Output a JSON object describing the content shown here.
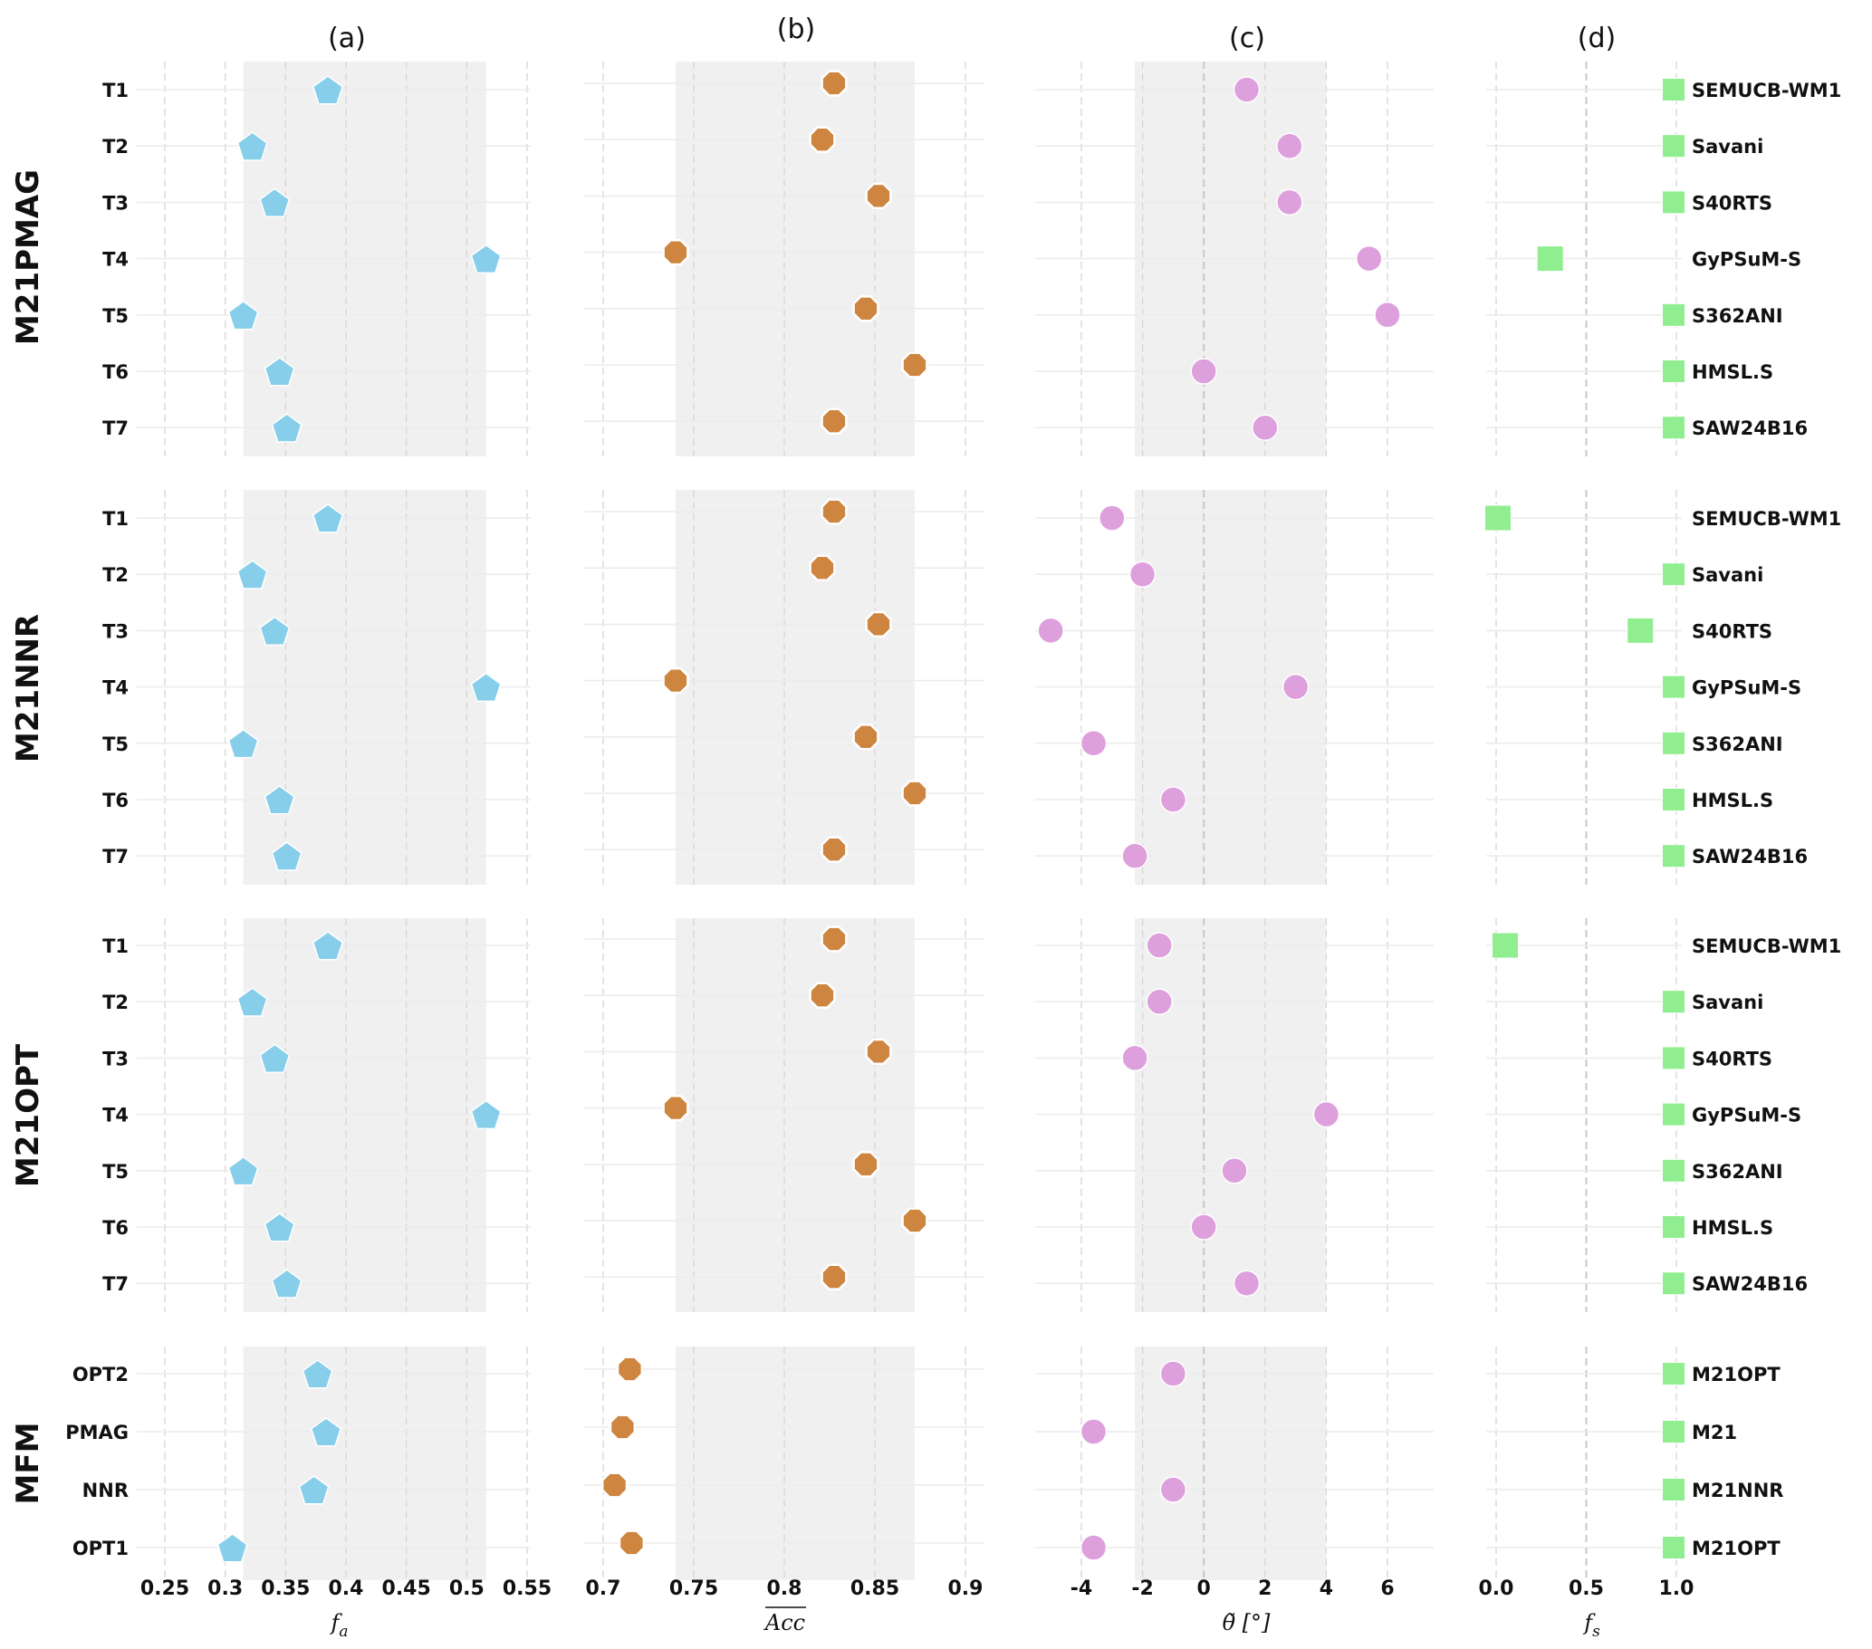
{
  "chart_data": {
    "type": "scatter",
    "panel_titles": [
      "(a)",
      "(b)",
      "(c)",
      "(d)"
    ],
    "panels": [
      {
        "key": "a",
        "title": "(a)",
        "xlabel": "f_a",
        "xlabel_main": "f",
        "xlabel_sub": "a",
        "xlim": [
          0.22,
          0.555
        ],
        "ticks": [
          0.25,
          0.3,
          0.35,
          0.4,
          0.45,
          0.5,
          0.55
        ],
        "tick_labels": [
          "0.25",
          "0.3",
          "0.35",
          "0.4",
          "0.45",
          "0.5",
          "0.55"
        ],
        "shaded_range": [
          0.315,
          0.516
        ],
        "marker": "pentagon",
        "color": "#87CEEB"
      },
      {
        "key": "b",
        "title": "(b)",
        "xlabel": "Acc (overlined)",
        "xlabel_main": "Acc",
        "xlim": [
          0.69,
          0.9
        ],
        "ticks": [
          0.7,
          0.75,
          0.8,
          0.85,
          0.9
        ],
        "tick_labels": [
          "0.7",
          "0.75",
          "0.8",
          "0.85",
          "0.9"
        ],
        "shaded_range": [
          0.74,
          0.872
        ],
        "marker": "octagon",
        "color": "#CD853F"
      },
      {
        "key": "c",
        "title": "(c)",
        "xlabel": "θ̃ [°]",
        "xlim": [
          -5.5,
          7.5
        ],
        "ticks": [
          -4,
          -2,
          0,
          2,
          4,
          6
        ],
        "tick_labels": [
          "-4",
          "-2",
          "0",
          "2",
          "4",
          "6"
        ],
        "shaded_range": [
          -2.25,
          4.0
        ],
        "marker": "circle",
        "color": "#DDA0DD"
      },
      {
        "key": "d",
        "title": "(d)",
        "xlabel": "f_s",
        "xlabel_main": "f",
        "xlabel_sub": "s",
        "xlim": [
          -0.05,
          1.03
        ],
        "ticks": [
          0.0,
          0.5,
          1.0
        ],
        "tick_labels": [
          "0.0",
          "0.5",
          "1.0"
        ],
        "marker": "square",
        "color": "#90EE90"
      }
    ],
    "groups": [
      {
        "name": "M21PMAG",
        "rows": [
          "T1",
          "T2",
          "T3",
          "T4",
          "T5",
          "T6",
          "T7"
        ],
        "right_labels": [
          "SEMUCB-WM1",
          "Savani",
          "S40RTS",
          "GyPSuM-S",
          "S362ANI",
          "HMSL.S",
          "SAW24B16"
        ],
        "a": [
          0.385,
          0.3225,
          0.341,
          0.516,
          0.315,
          0.345,
          0.351
        ],
        "b": [
          0.8275,
          0.821,
          0.852,
          0.74,
          0.845,
          0.872,
          0.8275
        ],
        "c": [
          1.4,
          2.8,
          2.8,
          5.4,
          6.0,
          0.0,
          2.0
        ],
        "d": [
          1.0,
          1.0,
          1.0,
          0.3,
          1.0,
          1.0,
          1.0
        ]
      },
      {
        "name": "M21NNR",
        "rows": [
          "T1",
          "T2",
          "T3",
          "T4",
          "T5",
          "T6",
          "T7"
        ],
        "right_labels": [
          "SEMUCB-WM1",
          "Savani",
          "S40RTS",
          "GyPSuM-S",
          "S362ANI",
          "HMSL.S",
          "SAW24B16"
        ],
        "a": [
          0.385,
          0.3225,
          0.341,
          0.516,
          0.315,
          0.345,
          0.351
        ],
        "b": [
          0.8275,
          0.821,
          0.852,
          0.74,
          0.845,
          0.872,
          0.8275
        ],
        "c": [
          -3.0,
          -2.0,
          -5.0,
          3.0,
          -3.6,
          -1.0,
          -2.25
        ],
        "d": [
          0.01,
          1.0,
          0.8,
          1.0,
          1.0,
          1.0,
          1.0
        ]
      },
      {
        "name": "M21OPT",
        "rows": [
          "T1",
          "T2",
          "T3",
          "T4",
          "T5",
          "T6",
          "T7"
        ],
        "right_labels": [
          "SEMUCB-WM1",
          "Savani",
          "S40RTS",
          "GyPSuM-S",
          "S362ANI",
          "HMSL.S",
          "SAW24B16"
        ],
        "a": [
          0.385,
          0.3225,
          0.341,
          0.516,
          0.315,
          0.345,
          0.351
        ],
        "b": [
          0.8275,
          0.821,
          0.852,
          0.74,
          0.845,
          0.872,
          0.8275
        ],
        "c": [
          -1.45,
          -1.45,
          -2.25,
          4.0,
          1.0,
          0.0,
          1.4
        ],
        "d": [
          0.05,
          1.0,
          1.0,
          1.0,
          1.0,
          1.0,
          1.0
        ]
      },
      {
        "name": "MFM",
        "rows": [
          "OPT2",
          "PMAG",
          "NNR",
          "OPT1"
        ],
        "right_labels": [
          "M21OPT",
          "M21",
          "M21NNR",
          "M21OPT"
        ],
        "a": [
          0.3765,
          0.3835,
          0.3735,
          0.306
        ],
        "b": [
          0.7147,
          0.7107,
          0.7063,
          0.7157
        ],
        "c": [
          -1.0,
          -3.6,
          -1.0,
          -3.6
        ],
        "d": [
          1.0,
          1.0,
          1.0,
          1.0
        ]
      }
    ],
    "grid": true,
    "legend": "none"
  }
}
